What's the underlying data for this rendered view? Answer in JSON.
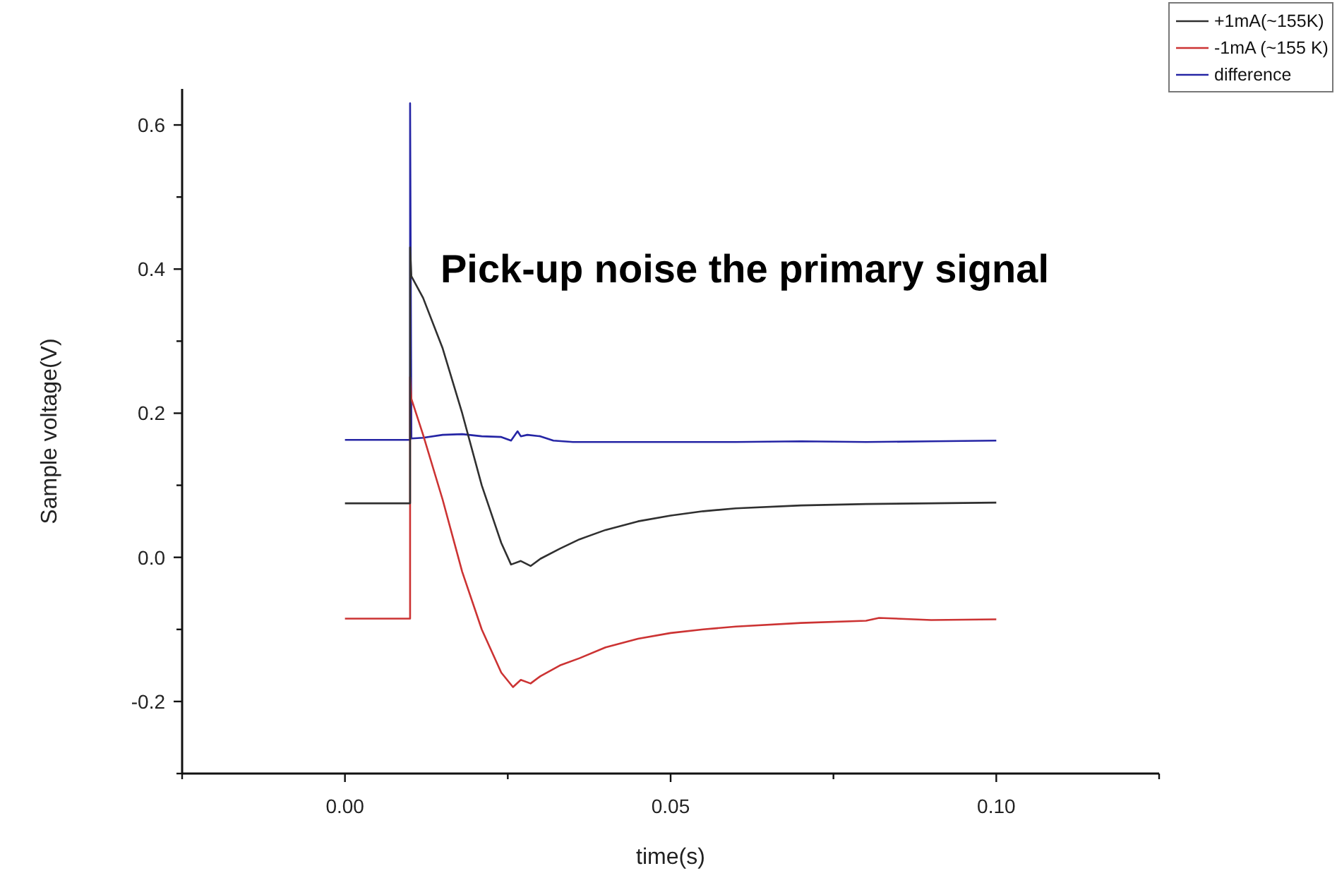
{
  "chart_data": {
    "type": "line",
    "xlabel": "time(s)",
    "ylabel": "Sample voltage(V)",
    "annotations": [
      "Pick-up noise the primary signal"
    ],
    "xlim": [
      -0.025,
      0.125
    ],
    "xticks": [
      {
        "value": -0.025,
        "label": null
      },
      {
        "value": 0,
        "label": "0.00"
      },
      {
        "value": 0.025,
        "label": null
      },
      {
        "value": 0.05,
        "label": "0.05"
      },
      {
        "value": 0.075,
        "label": null
      },
      {
        "value": 0.1,
        "label": "0.10"
      },
      {
        "value": 0.125,
        "label": null
      }
    ],
    "ylim": [
      -0.3,
      0.65
    ],
    "yticks": [
      {
        "value": -0.3,
        "label": null
      },
      {
        "value": -0.2,
        "label": "-0.2"
      },
      {
        "value": -0.1,
        "label": null
      },
      {
        "value": 0,
        "label": "0.0"
      },
      {
        "value": 0.1,
        "label": null
      },
      {
        "value": 0.2,
        "label": "0.2"
      },
      {
        "value": 0.3,
        "label": null
      },
      {
        "value": 0.4,
        "label": "0.4"
      },
      {
        "value": 0.5,
        "label": null
      },
      {
        "value": 0.6,
        "label": "0.6"
      }
    ],
    "legend": "top right",
    "grid": false,
    "line_style": "solid",
    "marker": "none",
    "series": [
      {
        "name": "+1mA(~155K)",
        "color": "#303030",
        "x": [
          0,
          0.01,
          0.01,
          0.0102,
          0.012,
          0.015,
          0.018,
          0.021,
          0.024,
          0.0255,
          0.027,
          0.0285,
          0.03,
          0.033,
          0.036,
          0.04,
          0.045,
          0.05,
          0.055,
          0.06,
          0.07,
          0.08,
          0.09,
          0.1
        ],
        "values": [
          0.075,
          0.075,
          0.43,
          0.39,
          0.36,
          0.29,
          0.2,
          0.1,
          0.02,
          -0.01,
          -0.005,
          -0.012,
          -0.002,
          0.012,
          0.025,
          0.038,
          0.05,
          0.058,
          0.064,
          0.068,
          0.072,
          0.074,
          0.075,
          0.076
        ]
      },
      {
        "name": "-1mA (~155 K)",
        "color": "#cc3333",
        "x": [
          0,
          0.01,
          0.01,
          0.0102,
          0.012,
          0.015,
          0.018,
          0.021,
          0.024,
          0.0258,
          0.027,
          0.0285,
          0.03,
          0.033,
          0.036,
          0.04,
          0.045,
          0.05,
          0.055,
          0.06,
          0.07,
          0.08,
          0.082,
          0.09,
          0.1
        ],
        "values": [
          -0.085,
          -0.085,
          0.25,
          0.22,
          0.17,
          0.08,
          -0.02,
          -0.1,
          -0.16,
          -0.18,
          -0.17,
          -0.175,
          -0.165,
          -0.15,
          -0.14,
          -0.125,
          -0.113,
          -0.105,
          -0.1,
          -0.096,
          -0.091,
          -0.088,
          -0.084,
          -0.087,
          -0.086
        ]
      },
      {
        "name": "difference",
        "color": "#2525a5",
        "x": [
          0,
          0.01,
          0.01,
          0.0102,
          0.012,
          0.015,
          0.018,
          0.021,
          0.024,
          0.0255,
          0.0265,
          0.027,
          0.028,
          0.03,
          0.032,
          0.035,
          0.04,
          0.05,
          0.06,
          0.07,
          0.08,
          0.09,
          0.1
        ],
        "values": [
          0.163,
          0.163,
          0.63,
          0.165,
          0.166,
          0.17,
          0.171,
          0.168,
          0.167,
          0.162,
          0.175,
          0.168,
          0.17,
          0.168,
          0.162,
          0.16,
          0.16,
          0.16,
          0.16,
          0.161,
          0.16,
          0.161,
          0.162
        ]
      }
    ]
  }
}
